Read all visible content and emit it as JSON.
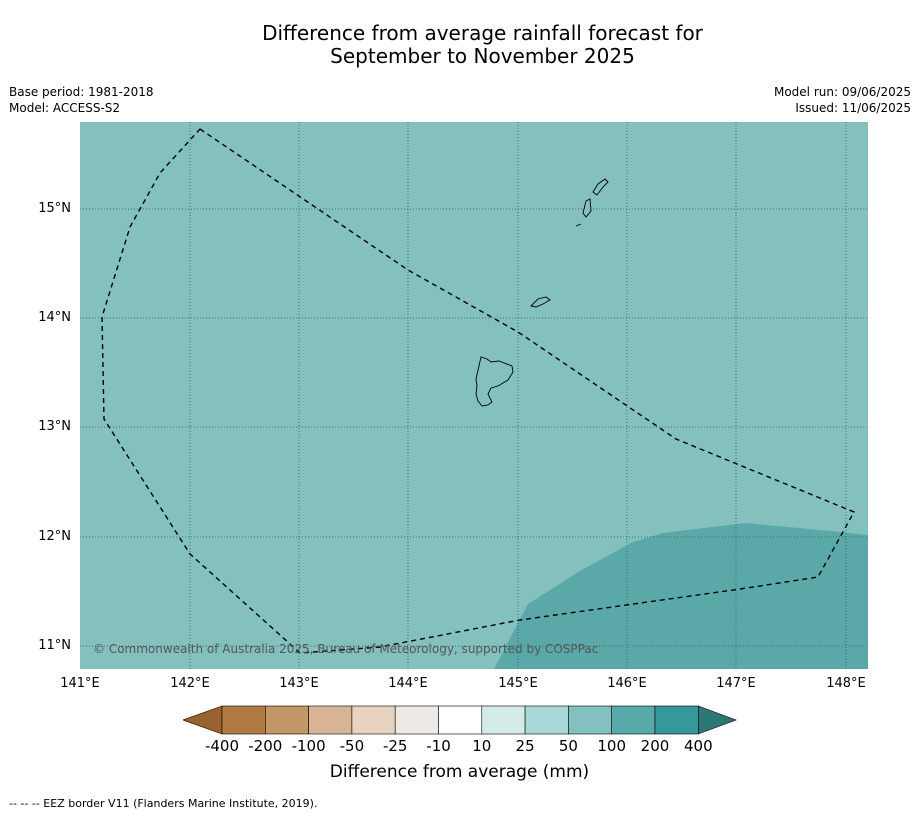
{
  "title_line1": "Difference from average rainfall forecast for",
  "title_line2": "September to November 2025",
  "base_period": "Base period: 1981-2018",
  "model": "Model: ACCESS-S2",
  "model_run": "Model run: 09/06/2025",
  "issued": "Issued: 11/06/2025",
  "lat_labels": [
    "15°N",
    "14°N",
    "13°N",
    "12°N",
    "11°N"
  ],
  "lon_labels": [
    "141°E",
    "142°E",
    "143°E",
    "144°E",
    "145°E",
    "146°E",
    "147°E",
    "148°E"
  ],
  "copyright": "© Commonwealth of Australia 2025, Bureau of Meteorology, supported by COSPPac",
  "colorbar": {
    "ticks": [
      "-400",
      "-200",
      "-100",
      "-50",
      "-25",
      "-10",
      "10",
      "25",
      "50",
      "100",
      "200",
      "400"
    ],
    "colors": [
      "#9b6130",
      "#b07a42",
      "#c39669",
      "#d6b494",
      "#e8d2c1",
      "#efe9e5",
      "#ffffff",
      "#d4ebe9",
      "#aad8d7",
      "#82c1c0",
      "#58a9a9",
      "#35989a",
      "#2c7673"
    ],
    "label": "Difference from average (mm)"
  },
  "footer": "--  --  -- EEZ border V11 (Flanders Marine Institute, 2019).",
  "map_colors": {
    "background": "#83c0be",
    "higher": "#5aa9a8"
  }
}
